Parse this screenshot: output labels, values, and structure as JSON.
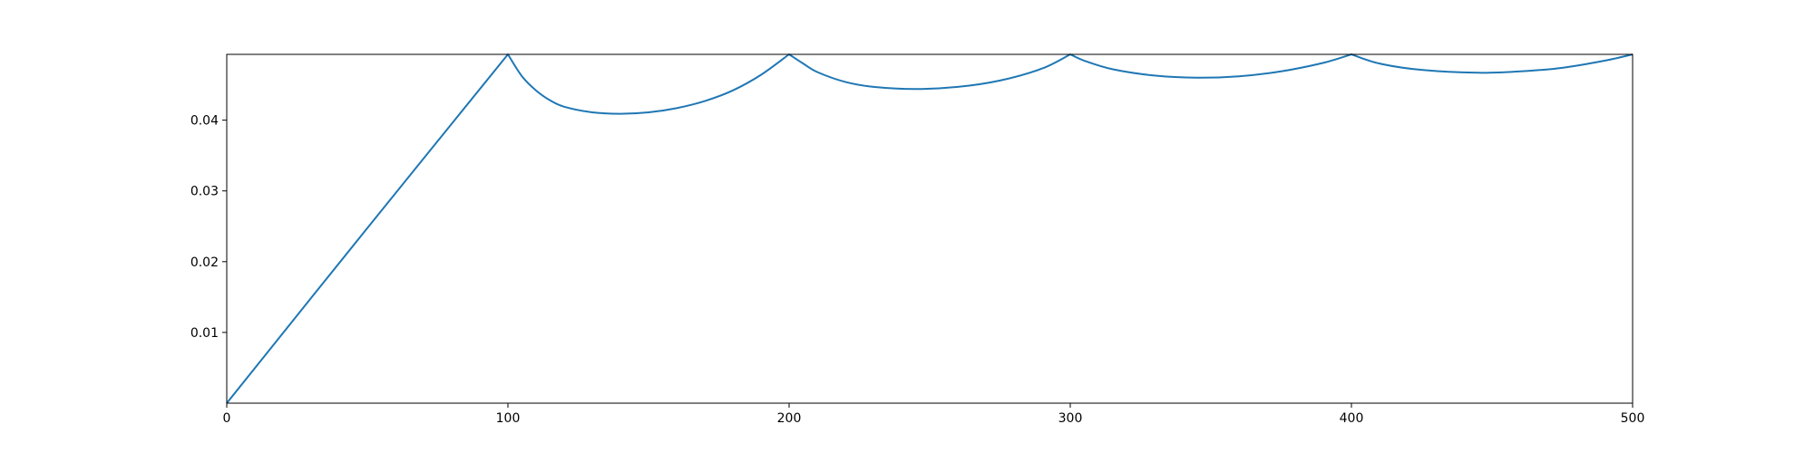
{
  "chart_data": {
    "type": "line",
    "title": "",
    "xlabel": "",
    "ylabel": "",
    "xlim": [
      0,
      500
    ],
    "ylim": [
      0,
      0.0493
    ],
    "xticks": [
      0,
      100,
      200,
      300,
      400,
      500
    ],
    "yticks": [
      0.01,
      0.02,
      0.03,
      0.04
    ],
    "xtick_labels": [
      "0",
      "100",
      "200",
      "300",
      "400",
      "500"
    ],
    "ytick_labels": [
      "0.01",
      "0.02",
      "0.03",
      "0.04"
    ],
    "grid": false,
    "legend": "none",
    "colors": {
      "line": "#1f77b4",
      "axes": "#000000",
      "background": "#ffffff"
    },
    "series": [
      {
        "values": [
          [
            0,
            0
          ],
          [
            50,
            0.02475
          ],
          [
            100,
            0.0493
          ],
          [
            105,
            0.0462
          ],
          [
            110,
            0.0442
          ],
          [
            115,
            0.0428
          ],
          [
            120,
            0.0419
          ],
          [
            130,
            0.0411
          ],
          [
            140,
            0.0409
          ],
          [
            150,
            0.0411
          ],
          [
            160,
            0.0417
          ],
          [
            170,
            0.0427
          ],
          [
            180,
            0.0442
          ],
          [
            190,
            0.0464
          ],
          [
            200,
            0.0493
          ],
          [
            205,
            0.048
          ],
          [
            210,
            0.0468
          ],
          [
            220,
            0.0454
          ],
          [
            230,
            0.0447
          ],
          [
            245,
            0.0444
          ],
          [
            260,
            0.0447
          ],
          [
            275,
            0.0456
          ],
          [
            290,
            0.0473
          ],
          [
            300,
            0.0493
          ],
          [
            305,
            0.0484
          ],
          [
            315,
            0.0472
          ],
          [
            330,
            0.0463
          ],
          [
            345,
            0.046
          ],
          [
            360,
            0.0462
          ],
          [
            375,
            0.0469
          ],
          [
            390,
            0.0481
          ],
          [
            400,
            0.0493
          ],
          [
            410,
            0.048
          ],
          [
            425,
            0.0471
          ],
          [
            445,
            0.0467
          ],
          [
            460,
            0.0469
          ],
          [
            475,
            0.0474
          ],
          [
            490,
            0.0484
          ],
          [
            500,
            0.0493
          ]
        ]
      }
    ]
  }
}
